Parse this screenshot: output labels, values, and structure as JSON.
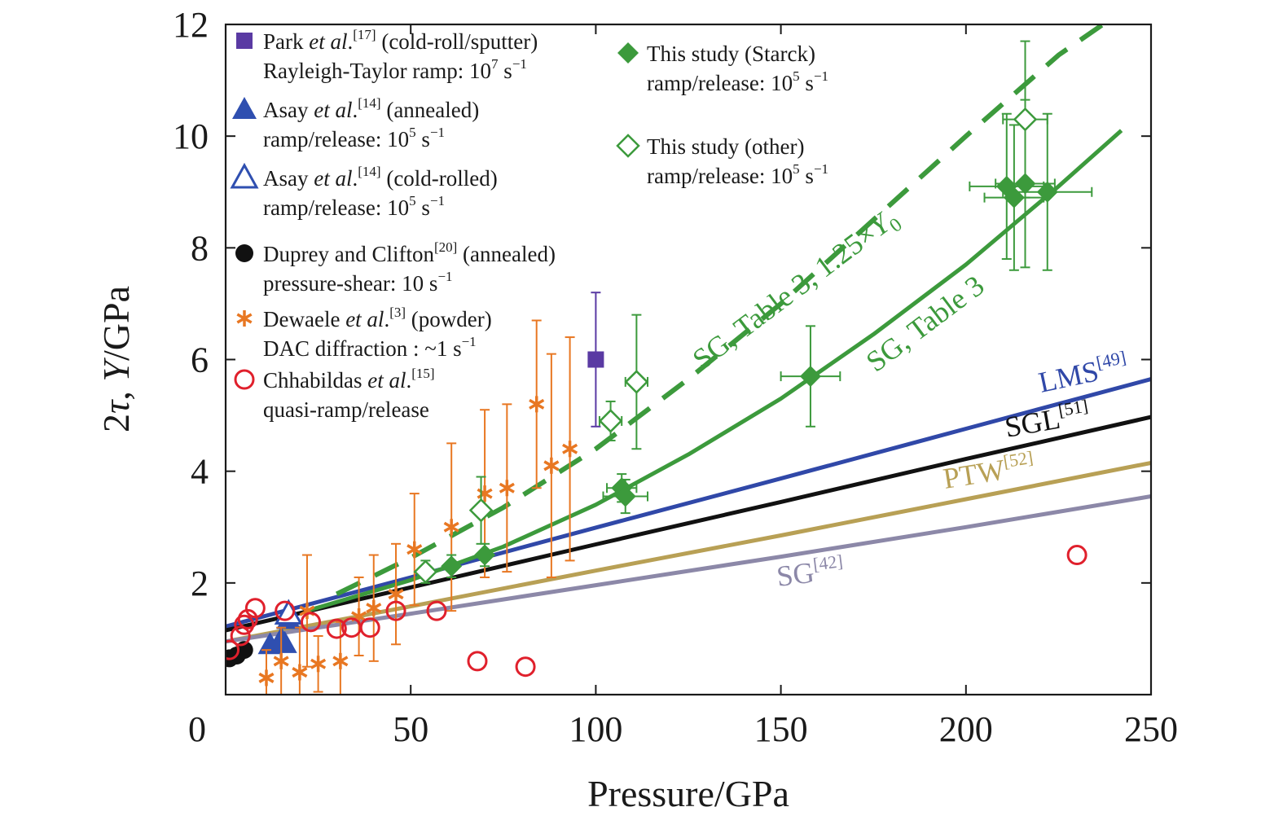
{
  "chart_data": {
    "type": "scatter",
    "xlabel": "Pressure/GPa",
    "ylabel_parts": {
      "a": "2",
      "tau": "τ",
      "b": ", ",
      "y": "Y",
      "c": "/GPa"
    },
    "xlim": [
      0,
      250
    ],
    "ylim": [
      0,
      12
    ],
    "xticks": [
      "0",
      "50",
      "100",
      "150",
      "200",
      "250"
    ],
    "yticks": [
      "2",
      "4",
      "6",
      "8",
      "10",
      "12"
    ],
    "ytick_values": [
      2,
      4,
      6,
      8,
      10,
      12
    ],
    "xtick_values": [
      0,
      50,
      100,
      150,
      200,
      250
    ],
    "colors": {
      "park": "#5a3aa3",
      "asay": "#2f4fb0",
      "duprey": "#111111",
      "dewaele": "#e87722",
      "chhabildas": "#e0202c",
      "green": "#3c9a3c",
      "lms": "#3048a8",
      "sgl": "#111111",
      "ptw": "#b8a055",
      "sg42": "#8c88a8"
    },
    "legend": [
      {
        "key": "park",
        "marker": "square-filled",
        "l1a": "Park ",
        "l1it": "et al",
        "l1b": ".",
        "l1sup": "[17]",
        "l1c": " (cold-roll/sputter)",
        "l2": "Rayleigh-Taylor ramp: 10",
        "l2sup": "7",
        "l2c": " s",
        "l2sup2": "−1"
      },
      {
        "key": "asay_annealed",
        "marker": "triangle-filled",
        "l1a": "Asay ",
        "l1it": "et al",
        "l1b": ".",
        "l1sup": "[14]",
        "l1c": " (annealed)",
        "l2": "ramp/release: 10",
        "l2sup": "5",
        "l2c": " s",
        "l2sup2": "−1"
      },
      {
        "key": "asay_cold",
        "marker": "triangle-open",
        "l1a": "Asay ",
        "l1it": "et al",
        "l1b": ".",
        "l1sup": "[14]",
        "l1c": " (cold-rolled)",
        "l2": "ramp/release: 10",
        "l2sup": "5",
        "l2c": " s",
        "l2sup2": "−1"
      },
      {
        "key": "duprey",
        "marker": "circle-filled",
        "l1a": "Duprey and Clifton",
        "l1it": "",
        "l1b": "",
        "l1sup": "[20]",
        "l1c": " (annealed)",
        "l2": "pressure-shear: 10 s",
        "l2sup": "−1",
        "l2c": "",
        "l2sup2": ""
      },
      {
        "key": "dewaele",
        "marker": "asterisk",
        "l1a": "Dewaele ",
        "l1it": "et al",
        "l1b": ".",
        "l1sup": "[3]",
        "l1c": " (powder)",
        "l2": "DAC diffraction : ~1 s",
        "l2sup": "−1",
        "l2c": "",
        "l2sup2": ""
      },
      {
        "key": "chhabildas",
        "marker": "circle-open",
        "l1a": "Chhabildas ",
        "l1it": "et al",
        "l1b": ".",
        "l1sup": "[15]",
        "l1c": "",
        "l2": "quasi-ramp/release",
        "l2sup": "",
        "l2c": "",
        "l2sup2": ""
      },
      {
        "key": "starck",
        "marker": "diamond-filled",
        "l1a": "This study (Starck)",
        "l1it": "",
        "l1b": "",
        "l1sup": "",
        "l1c": "",
        "l2": "ramp/release: 10",
        "l2sup": "5",
        "l2c": " s",
        "l2sup2": "−1"
      },
      {
        "key": "other",
        "marker": "diamond-open",
        "l1a": "This study (other)",
        "l1it": "",
        "l1b": "",
        "l1sup": "",
        "l1c": "",
        "l2": "ramp/release: 10",
        "l2sup": "5",
        "l2c": " s",
        "l2sup2": "−1"
      }
    ],
    "curve_labels": {
      "sg_table3": "SG, Table 3",
      "sg_table3_125": "SG, Table 3, 1.25×",
      "sg_table3_125_y": "Y",
      "sg_table3_125_sub": "0",
      "lms": "LMS",
      "lms_ref": "[49]",
      "sgl": "SGL",
      "sgl_ref": "[51]",
      "ptw": "PTW",
      "ptw_ref": "[52]",
      "sg42": "SG",
      "sg42_ref": "[42]"
    },
    "series": [
      {
        "key": "lms",
        "style": "line",
        "x": [
          0,
          50,
          100,
          150,
          200,
          250
        ],
        "y": [
          1.22,
          2.1,
          2.99,
          3.87,
          4.76,
          5.65
        ]
      },
      {
        "key": "sgl",
        "style": "line",
        "x": [
          0,
          50,
          100,
          150,
          200,
          250
        ],
        "y": [
          1.15,
          1.92,
          2.69,
          3.45,
          4.22,
          4.97
        ]
      },
      {
        "key": "ptw",
        "style": "line",
        "x": [
          0,
          50,
          100,
          150,
          200,
          250
        ],
        "y": [
          0.95,
          1.58,
          2.22,
          2.85,
          3.5,
          4.15
        ]
      },
      {
        "key": "sg42",
        "style": "line",
        "x": [
          0,
          50,
          100,
          150,
          200,
          250
        ],
        "y": [
          0.95,
          1.45,
          1.96,
          2.47,
          3.0,
          3.55
        ]
      },
      {
        "key": "sg_table3",
        "style": "line",
        "x": [
          22,
          50,
          75,
          100,
          125,
          150,
          175,
          200,
          225,
          242
        ],
        "y": [
          1.5,
          2.05,
          2.65,
          3.4,
          4.3,
          5.3,
          6.45,
          7.7,
          9.1,
          10.1
        ]
      },
      {
        "key": "sg_table3_125",
        "style": "dashed",
        "x": [
          30,
          50,
          75,
          100,
          125,
          150,
          175,
          200,
          225,
          237
        ],
        "y": [
          1.8,
          2.45,
          3.35,
          4.4,
          5.65,
          7.0,
          8.5,
          10.0,
          11.45,
          12.0
        ]
      },
      {
        "key": "park",
        "marker": "square-filled",
        "points": [
          {
            "x": 100,
            "y": 6.0,
            "yerr": 1.2
          }
        ]
      },
      {
        "key": "asay_annealed",
        "marker": "triangle-filled",
        "points": [
          {
            "x": 12,
            "y": 0.9
          },
          {
            "x": 15,
            "y": 1.0
          },
          {
            "x": 16,
            "y": 0.92
          },
          {
            "x": 17,
            "y": 1.35
          }
        ]
      },
      {
        "key": "asay_cold",
        "marker": "triangle-open",
        "points": [
          {
            "x": 17,
            "y": 1.45
          }
        ]
      },
      {
        "key": "duprey",
        "marker": "circle-filled",
        "points": [
          {
            "x": 1,
            "y": 0.65
          },
          {
            "x": 3,
            "y": 0.7
          },
          {
            "x": 5,
            "y": 0.8
          }
        ]
      },
      {
        "key": "dewaele",
        "marker": "asterisk",
        "points": [
          {
            "x": 11,
            "y": 0.3,
            "yerr": 0.5
          },
          {
            "x": 15,
            "y": 0.6,
            "yerr": 0.6
          },
          {
            "x": 20,
            "y": 0.4,
            "yerr": 0.8
          },
          {
            "x": 22,
            "y": 1.5,
            "yerr": 1.0
          },
          {
            "x": 25,
            "y": 0.55,
            "yerr": 0.5
          },
          {
            "x": 31,
            "y": 0.6,
            "yerr": 0.7
          },
          {
            "x": 36,
            "y": 1.4,
            "yerr": 0.7
          },
          {
            "x": 40,
            "y": 1.55,
            "yerr": 0.95
          },
          {
            "x": 46,
            "y": 1.8,
            "yerr": 0.9
          },
          {
            "x": 51,
            "y": 2.6,
            "yerr": 1.0
          },
          {
            "x": 61,
            "y": 3.0,
            "yerr": 1.5
          },
          {
            "x": 70,
            "y": 3.6,
            "yerr": 1.5
          },
          {
            "x": 76,
            "y": 3.7,
            "yerr": 1.5
          },
          {
            "x": 84,
            "y": 5.2,
            "yerr": 1.5
          },
          {
            "x": 88,
            "y": 4.1,
            "yerr": 2.0
          },
          {
            "x": 93,
            "y": 4.4,
            "yerr": 2.0
          }
        ]
      },
      {
        "key": "chhabildas",
        "marker": "circle-open",
        "points": [
          {
            "x": 1,
            "y": 0.8
          },
          {
            "x": 4,
            "y": 1.05
          },
          {
            "x": 5,
            "y": 1.25
          },
          {
            "x": 6,
            "y": 1.35
          },
          {
            "x": 8,
            "y": 1.55
          },
          {
            "x": 16,
            "y": 1.5
          },
          {
            "x": 23,
            "y": 1.3
          },
          {
            "x": 30,
            "y": 1.18
          },
          {
            "x": 34,
            "y": 1.2
          },
          {
            "x": 39,
            "y": 1.2
          },
          {
            "x": 46,
            "y": 1.5
          },
          {
            "x": 57,
            "y": 1.5
          },
          {
            "x": 68,
            "y": 0.6
          },
          {
            "x": 81,
            "y": 0.5
          },
          {
            "x": 230,
            "y": 2.5
          }
        ]
      },
      {
        "key": "starck",
        "marker": "diamond-filled",
        "points": [
          {
            "x": 61,
            "y": 2.3,
            "yerr": 0.2
          },
          {
            "x": 70,
            "y": 2.5,
            "yerr": 0.2
          },
          {
            "x": 107,
            "y": 3.7,
            "xerr": 4,
            "yerr": 0.25
          },
          {
            "x": 108,
            "y": 3.55,
            "xerr": 6,
            "yerr": 0.3
          },
          {
            "x": 158,
            "y": 5.7,
            "xerr": 8,
            "yerr": 0.9
          },
          {
            "x": 211,
            "y": 9.1,
            "xerr": 10,
            "yerr": 1.3
          },
          {
            "x": 213,
            "y": 8.9,
            "xerr": 8,
            "yerr": 1.3
          },
          {
            "x": 216,
            "y": 9.15,
            "xerr": 8,
            "yerr": 1.5
          },
          {
            "x": 222,
            "y": 9.0,
            "xerr": 12,
            "yerr": 1.4
          }
        ]
      },
      {
        "key": "other",
        "marker": "diamond-open",
        "points": [
          {
            "x": 54,
            "y": 2.2,
            "yerr": 0.2
          },
          {
            "x": 69,
            "y": 3.3,
            "yerr": 0.6
          },
          {
            "x": 104,
            "y": 4.9,
            "xerr": 3,
            "yerr": 0.35
          },
          {
            "x": 111,
            "y": 5.6,
            "xerr": 3,
            "yerr": 1.2
          },
          {
            "x": 216,
            "y": 10.3,
            "xerr": 6,
            "yerr": 1.4
          }
        ]
      }
    ]
  }
}
